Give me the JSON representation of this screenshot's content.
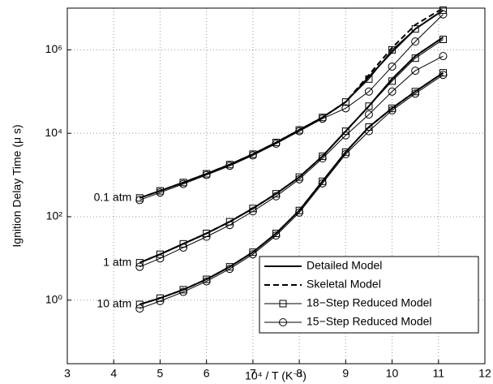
{
  "chart_data": {
    "type": "line",
    "xlabel": "10⁴ / T  (K⁻¹)",
    "ylabel": "Ignition Delay Time  (μ s)",
    "log_y": true,
    "grid": true,
    "legend": "lower right",
    "xlim": [
      3,
      12
    ],
    "xticks": [
      3,
      4,
      5,
      6,
      7,
      8,
      9,
      10,
      11,
      12
    ],
    "ylim": [
      0.03,
      10000000
    ],
    "yticks": [
      {
        "value": 1,
        "label": "10⁰"
      },
      {
        "value": 100,
        "label": "10²"
      },
      {
        "value": 10000,
        "label": "10⁴"
      },
      {
        "value": 1000000,
        "label": "10⁶"
      }
    ],
    "annotations": [
      "0.1 atm",
      "1 atm",
      "10 atm"
    ],
    "x": [
      4.56,
      5,
      5.5,
      6,
      6.5,
      7,
      7.5,
      8,
      8.5,
      9,
      9.5,
      10,
      10.5,
      11.1
    ],
    "series": [
      {
        "name": "Detailed Model",
        "color": "#000000",
        "line_style": "solid",
        "line_width": 2,
        "marker": "none",
        "values": [
          [
            282,
            417,
            661,
            1072,
            1778,
            3162,
            6026,
            12023,
            23988,
            56234,
            223872,
            891251,
            3162278,
            8912509
          ],
          [
            7.9,
            12.6,
            22.4,
            39.8,
            75.9,
            158,
            355,
            891,
            2818,
            11220,
            44668,
            199526,
            707946,
            1995262
          ],
          [
            0.79,
            1.12,
            1.78,
            3.16,
            6.31,
            14.1,
            39.8,
            141,
            708,
            3548,
            14125,
            39811,
            100000,
            281838
          ]
        ]
      },
      {
        "name": "Skeletal Model",
        "color": "#000000",
        "line_style": "dashed",
        "line_width": 2,
        "marker": "none",
        "values": [
          [
            282,
            417,
            661,
            1072,
            1778,
            3162,
            6026,
            12023,
            23988,
            56234,
            251189,
            1122018,
            3981072,
            10000000
          ],
          [
            7.9,
            12.6,
            22.4,
            39.8,
            75.9,
            158,
            355,
            891,
            2818,
            11220,
            44668,
            199526,
            707946,
            1995262
          ],
          [
            0.79,
            1.12,
            1.78,
            3.16,
            6.31,
            14.1,
            39.8,
            141,
            708,
            3548,
            14125,
            39811,
            100000,
            281838
          ]
        ]
      },
      {
        "name": "18−Step Reduced Model",
        "color": "#000000",
        "line_style": "solid",
        "line_width": 1,
        "marker": "square",
        "values": [
          [
            282,
            417,
            661,
            1072,
            1778,
            3162,
            6026,
            12023,
            23988,
            56234,
            199526,
            1000000,
            3162278,
            8912509
          ],
          [
            7.9,
            12.6,
            22.4,
            39.8,
            75.9,
            158,
            355,
            891,
            2818,
            11220,
            44668,
            177828,
            631000,
            1778279
          ],
          [
            0.79,
            1.12,
            1.78,
            3.16,
            6.31,
            14.1,
            39.8,
            141,
            708,
            3548,
            14125,
            39811,
            100000,
            281838
          ]
        ]
      },
      {
        "name": "15−Step Reduced Model",
        "color": "#000000",
        "line_style": "solid",
        "line_width": 1,
        "marker": "circle",
        "values": [
          [
            251,
            380,
            610,
            1000,
            1660,
            2951,
            5623,
            11220,
            22387,
            39811,
            100000,
            398107,
            1584893,
            7079458
          ],
          [
            6.3,
            10,
            18.2,
            33.1,
            63.1,
            135,
            309,
            794,
            2512,
            8913,
            28184,
            100000,
            316228,
            707946
          ],
          [
            0.63,
            0.95,
            1.58,
            2.82,
            5.62,
            12.6,
            35.5,
            126,
            631,
            3162,
            11220,
            35481,
            89125,
            251189
          ]
        ]
      }
    ]
  }
}
